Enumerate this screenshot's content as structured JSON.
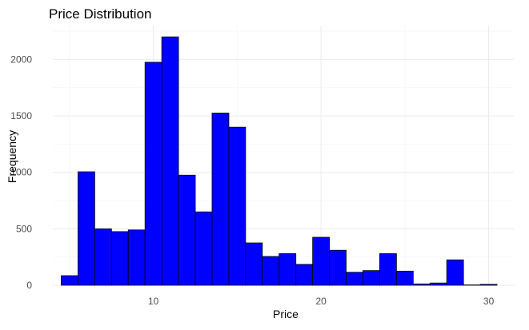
{
  "chart_data": {
    "type": "bar",
    "subtype": "histogram",
    "title": "Price Distribution",
    "xlabel": "Price",
    "ylabel": "Frequency",
    "bin_width": 1,
    "xlim": [
      4,
      31.5
    ],
    "ylim": [
      0,
      2300
    ],
    "x_ticks": [
      10,
      20,
      30
    ],
    "y_ticks": [
      0,
      500,
      1000,
      1500,
      2000
    ],
    "grid": true,
    "bar_fill": "#0000ff",
    "bar_outline": "#000000",
    "bins": [
      {
        "center": 5,
        "value": 85
      },
      {
        "center": 6,
        "value": 1005
      },
      {
        "center": 7,
        "value": 500
      },
      {
        "center": 8,
        "value": 475
      },
      {
        "center": 9,
        "value": 490
      },
      {
        "center": 10,
        "value": 1975
      },
      {
        "center": 11,
        "value": 2200
      },
      {
        "center": 12,
        "value": 975
      },
      {
        "center": 13,
        "value": 650
      },
      {
        "center": 14,
        "value": 1525
      },
      {
        "center": 15,
        "value": 1400
      },
      {
        "center": 16,
        "value": 375
      },
      {
        "center": 17,
        "value": 255
      },
      {
        "center": 18,
        "value": 280
      },
      {
        "center": 19,
        "value": 185
      },
      {
        "center": 20,
        "value": 425
      },
      {
        "center": 21,
        "value": 310
      },
      {
        "center": 22,
        "value": 115
      },
      {
        "center": 23,
        "value": 130
      },
      {
        "center": 24,
        "value": 280
      },
      {
        "center": 25,
        "value": 125
      },
      {
        "center": 26,
        "value": 12
      },
      {
        "center": 27,
        "value": 20
      },
      {
        "center": 28,
        "value": 225
      },
      {
        "center": 29,
        "value": 3
      },
      {
        "center": 30,
        "value": 8
      }
    ]
  }
}
